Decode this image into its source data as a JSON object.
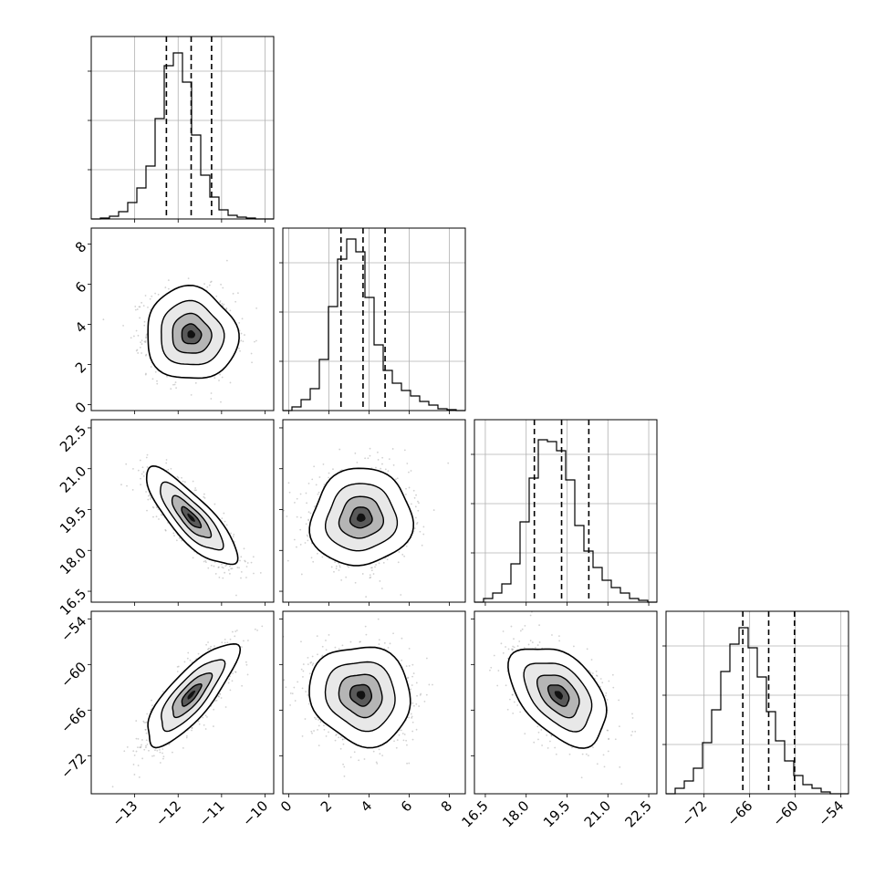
{
  "chart_data": {
    "type": "corner",
    "title": "",
    "grid": true,
    "parameters": [
      {
        "name": "",
        "range": [
          -14.0,
          -9.8
        ],
        "ticks": [
          -13,
          -12,
          -11,
          -10
        ],
        "tick_labels": [
          "−13",
          "−12",
          "−11",
          "−10"
        ],
        "median": -11.7,
        "q16": -12.27,
        "q84": -11.23
      },
      {
        "name": "",
        "range": [
          -0.3,
          8.8
        ],
        "ticks": [
          0,
          2,
          4,
          6,
          8
        ],
        "tick_labels": [
          "0",
          "2",
          "4",
          "6",
          "8"
        ],
        "median": 3.7,
        "q16": 2.6,
        "q84": 4.8
      },
      {
        "name": "",
        "range": [
          16.1,
          22.8
        ],
        "ticks": [
          16.5,
          18.0,
          19.5,
          21.0,
          22.5
        ],
        "tick_labels": [
          "16.5",
          "18.0",
          "19.5",
          "21.0",
          "22.5"
        ],
        "median": 19.3,
        "q16": 18.3,
        "q84": 20.3
      },
      {
        "name": "",
        "range": [
          -77,
          -53
        ],
        "ticks": [
          -72,
          -66,
          -60,
          -54
        ],
        "tick_labels": [
          "−72",
          "−66",
          "−60",
          "−54"
        ],
        "median": -63.5,
        "q16": -66.9,
        "q84": -60.1
      }
    ],
    "histograms": [
      [
        0.0,
        0.005,
        0.015,
        0.04,
        0.09,
        0.17,
        0.29,
        0.55,
        0.84,
        0.91,
        0.75,
        0.46,
        0.24,
        0.12,
        0.05,
        0.02,
        0.01,
        0.005,
        0.0,
        0.0
      ],
      [
        0.0,
        0.02,
        0.06,
        0.12,
        0.28,
        0.57,
        0.83,
        0.94,
        0.87,
        0.62,
        0.36,
        0.22,
        0.15,
        0.11,
        0.08,
        0.05,
        0.03,
        0.01,
        0.005,
        0.0
      ],
      [
        0.0,
        0.02,
        0.05,
        0.1,
        0.21,
        0.44,
        0.68,
        0.89,
        0.88,
        0.83,
        0.67,
        0.42,
        0.28,
        0.19,
        0.12,
        0.08,
        0.05,
        0.02,
        0.01,
        0.0
      ],
      [
        0.0,
        0.03,
        0.07,
        0.14,
        0.28,
        0.46,
        0.67,
        0.82,
        0.91,
        0.8,
        0.64,
        0.45,
        0.29,
        0.18,
        0.1,
        0.05,
        0.03,
        0.01,
        0.0,
        0.0
      ]
    ],
    "pairs": [
      {
        "x": 0,
        "y": 1,
        "mean": [
          -11.7,
          3.5
        ],
        "sd": [
          0.5,
          1.1
        ],
        "rho": -0.05
      },
      {
        "x": 0,
        "y": 2,
        "mean": [
          -11.7,
          19.2
        ],
        "sd": [
          0.5,
          0.85
        ],
        "rho": -0.82
      },
      {
        "x": 1,
        "y": 2,
        "mean": [
          3.6,
          19.2
        ],
        "sd": [
          1.2,
          0.85
        ],
        "rho": 0.05
      },
      {
        "x": 0,
        "y": 3,
        "mean": [
          -11.7,
          -64.0
        ],
        "sd": [
          0.5,
          3.2
        ],
        "rho": 0.8
      },
      {
        "x": 1,
        "y": 3,
        "mean": [
          3.6,
          -64.0
        ],
        "sd": [
          1.2,
          3.1
        ],
        "rho": -0.1
      },
      {
        "x": 2,
        "y": 3,
        "mean": [
          19.2,
          -64.0
        ],
        "sd": [
          0.85,
          3.1
        ],
        "rho": -0.45
      }
    ]
  }
}
